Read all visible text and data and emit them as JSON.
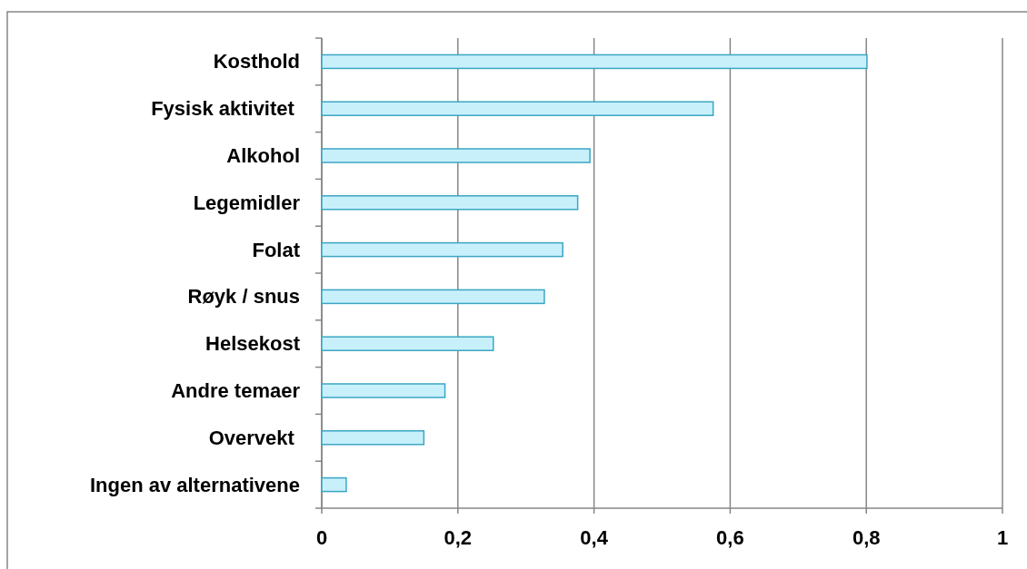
{
  "chart_data": {
    "type": "bar",
    "orientation": "horizontal",
    "categories": [
      "Kosthold",
      "Fysisk aktivitet ",
      "Alkohol",
      "Legemidler",
      "Folat",
      "Røyk / snus",
      "Helsekost",
      "Andre temaer",
      "Overvekt ",
      "Ingen av alternativene"
    ],
    "values": [
      0.801,
      0.575,
      0.394,
      0.376,
      0.354,
      0.327,
      0.252,
      0.181,
      0.15,
      0.036
    ],
    "color": "#c8f0fb",
    "xlim": [
      0,
      1
    ],
    "xticks": [
      {
        "value": 0,
        "label": "0"
      },
      {
        "value": 0.2,
        "label": "0,2"
      },
      {
        "value": 0.4,
        "label": "0,4"
      },
      {
        "value": 0.6,
        "label": "0,6"
      },
      {
        "value": 0.8,
        "label": "0,8"
      },
      {
        "value": 1,
        "label": "1"
      }
    ],
    "grid": "x"
  }
}
